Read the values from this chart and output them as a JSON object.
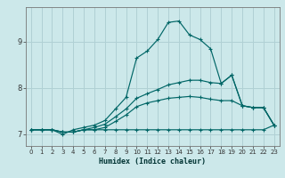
{
  "xlabel": "Humidex (Indice chaleur)",
  "bg_color": "#cce8ea",
  "grid_color": "#b0d0d4",
  "line_color": "#006666",
  "xlim": [
    -0.5,
    23.5
  ],
  "ylim": [
    6.75,
    9.75
  ],
  "xticks": [
    0,
    1,
    2,
    3,
    4,
    5,
    6,
    7,
    8,
    9,
    10,
    11,
    12,
    13,
    14,
    15,
    16,
    17,
    18,
    19,
    20,
    21,
    22,
    23
  ],
  "yticks": [
    7,
    8,
    9
  ],
  "lines": [
    [
      7.1,
      7.1,
      7.1,
      7.0,
      7.1,
      7.15,
      7.2,
      7.3,
      7.55,
      7.8,
      8.65,
      8.8,
      9.05,
      9.42,
      9.45,
      9.15,
      9.05,
      8.85,
      8.1,
      8.28,
      7.62,
      7.58,
      7.58,
      7.2
    ],
    [
      7.1,
      7.1,
      7.1,
      7.05,
      7.05,
      7.1,
      7.15,
      7.22,
      7.38,
      7.55,
      7.78,
      7.88,
      7.97,
      8.07,
      8.12,
      8.17,
      8.17,
      8.12,
      8.1,
      8.28,
      7.62,
      7.58,
      7.58,
      7.2
    ],
    [
      7.1,
      7.1,
      7.1,
      7.05,
      7.05,
      7.1,
      7.1,
      7.15,
      7.28,
      7.42,
      7.6,
      7.68,
      7.73,
      7.78,
      7.8,
      7.82,
      7.8,
      7.76,
      7.73,
      7.73,
      7.62,
      7.58,
      7.58,
      7.2
    ],
    [
      7.1,
      7.1,
      7.1,
      7.05,
      7.05,
      7.1,
      7.1,
      7.1,
      7.1,
      7.1,
      7.1,
      7.1,
      7.1,
      7.1,
      7.1,
      7.1,
      7.1,
      7.1,
      7.1,
      7.1,
      7.1,
      7.1,
      7.1,
      7.2
    ]
  ]
}
